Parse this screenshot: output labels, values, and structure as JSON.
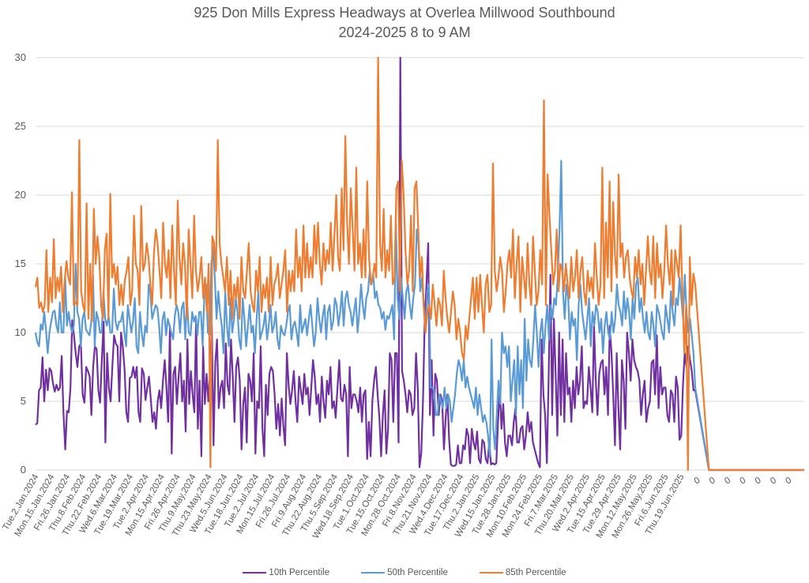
{
  "chart_data": {
    "type": "line",
    "title": "925 Don Mills Express Headways at Overlea Millwood Southbound",
    "subtitle": "2024-2025 8 to 9 AM",
    "xlabel": "",
    "ylabel": "",
    "ylim": [
      0,
      30
    ],
    "yticks": [
      0,
      5,
      10,
      15,
      20,
      25,
      30
    ],
    "grid": true,
    "legend_position": "bottom",
    "x_tick_labels": [
      "Tue.2.Jan.2024",
      "Mon.15.Jan.2024",
      "Fri.26.Jan.2024",
      "Thu.8.Feb.2024",
      "Thu.22.Feb.2024",
      "Wed.6.Mar.2024",
      "Tue.19.Mar.2024",
      "Tue.2.Apr.2024",
      "Mon.15.Apr.2024",
      "Fri.26.Apr.2024",
      "Thu.9.May.2024",
      "Thu.23.May.2024",
      "Wed.5.Jun.2024",
      "Tue.18.Jun.2024",
      "Tue.2.Jul.2024",
      "Mon.15.Jul.2024",
      "Fri.26.Jul.2024",
      "Fri.9.Aug.2024",
      "Thu.22.Aug.2024",
      "Thu.5.Sep.2024",
      "Wed.18.Sep.2024",
      "Tue.1.Oct.2024",
      "Tue.15.Oct.2024",
      "Mon.28.Oct.2024",
      "Fri.8.Nov.2024",
      "Thu.21.Nov.2024",
      "Wed.4.Dec.2024",
      "Tue.17.Dec.2024",
      "Thu.2.Jan.2025",
      "Wed.15.Jan.2025",
      "Tue.28.Jan.2025",
      "Mon.10.Feb.2025",
      "Mon.24.Feb.2025",
      "Fri.7.Mar.2025",
      "Thu.20.Mar.2025",
      "Wed.2.Apr.2025",
      "Tue.15.Apr.2025",
      "Tue.29.Apr.2025",
      "Mon.12.May.2025",
      "Mon.26.May.2025",
      "Fri.6.Jun.2025",
      "Thu.19.Jun.2025",
      "0",
      "0",
      "0",
      "0",
      "0",
      "0",
      "0"
    ],
    "series": [
      {
        "name": "10th Percentile",
        "color": "#7030A0",
        "values": [
          3.3,
          3.4,
          5.8,
          6.0,
          8.2,
          5.0,
          7.3,
          5.8,
          7.4,
          7.2,
          6.3,
          5.7,
          6.2,
          5.8,
          6.0,
          8.3,
          4.2,
          1.5,
          4.3,
          4.2,
          6.0,
          10.9,
          9.8,
          8.5,
          7.5,
          9.0,
          9.2,
          5.5,
          4.9,
          7.5,
          7.2,
          6.8,
          4.0,
          7.5,
          9.0,
          8.8,
          5.8,
          4.9,
          8.0,
          10.8,
          2.0,
          8.5,
          6.0,
          5.0,
          7.5,
          9.8,
          9.2,
          9.0,
          5.0,
          10.0,
          9.0,
          7.3,
          4.2,
          3.5,
          6.7,
          6.8,
          7.5,
          6.7,
          7.5,
          4.2,
          3.5,
          7.4,
          7.0,
          5.1,
          6.0,
          6.8,
          5.2,
          3.5,
          4.2,
          3.0,
          5.0,
          5.8,
          4.5,
          6.5,
          8.0,
          6.0,
          3.5,
          10.5,
          1.2,
          7.0,
          7.5,
          4.8,
          6.8,
          8.5,
          5.0,
          6.5,
          2.8,
          9.5,
          4.8,
          7.2,
          5.5,
          4.2,
          11.0,
          3.0,
          6.5,
          1.0,
          9.0,
          4.8,
          7.0,
          5.0,
          7.2,
          10.5,
          1.8,
          7.8,
          9.5,
          4.5,
          6.0,
          6.5,
          4.5,
          9.2,
          6.2,
          5.5,
          9.5,
          6.8,
          3.5,
          7.5,
          8.2,
          6.5,
          1.5,
          4.8,
          6.0,
          2.0,
          7.0,
          6.5,
          5.0,
          8.5,
          1.2,
          5.0,
          4.5,
          9.0,
          3.0,
          1.0,
          6.2,
          4.0,
          7.0,
          7.5,
          7.2,
          5.5,
          3.0,
          4.8,
          2.5,
          5.2,
          3.2,
          1.8,
          8.5,
          6.2,
          4.8,
          5.8,
          7.2,
          5.0,
          3.5,
          6.8,
          5.8,
          4.8,
          7.0,
          5.5,
          6.0,
          4.0,
          6.0,
          8.0,
          6.8,
          4.8,
          5.5,
          3.5,
          6.8,
          5.0,
          3.8,
          6.5,
          5.5,
          7.5,
          4.5,
          5.0,
          3.8,
          6.0,
          8.0,
          5.2,
          5.0,
          6.2,
          5.5,
          1.0,
          7.5,
          4.5,
          5.5,
          5.5,
          5.0,
          4.2,
          6.0,
          3.5,
          5.5,
          5.8,
          0.8,
          3.5,
          1.0,
          5.0,
          6.5,
          7.5,
          5.5,
          3.8,
          1.0,
          4.0,
          5.8,
          1.2,
          3.0,
          8.5,
          8.0,
          3.5,
          8.5,
          8.5,
          2.0,
          30.0,
          7.2,
          6.5,
          5.5,
          4.2,
          5.8,
          5.5,
          4.0,
          4.5,
          8.5,
          6.0,
          0.2,
          1.2,
          5.0,
          11.0,
          13.5,
          16.5,
          4.0,
          8.0,
          2.5,
          7.0,
          6.5,
          4.0,
          5.5,
          5.0,
          1.5,
          3.8,
          5.5,
          2.2,
          0.4,
          0.3,
          0.3,
          0.4,
          1.8,
          0.5,
          0.5,
          1.8,
          1.5,
          3.0,
          2.5,
          0.5,
          3.0,
          2.0,
          1.5,
          2.8,
          0.8,
          0.5,
          2.2,
          2.0,
          0.8,
          0.5,
          2.0,
          0.4,
          0.5,
          0.4,
          0.5,
          3.5,
          6.0,
          3.0,
          4.8,
          2.0,
          1.0,
          2.5,
          2.5,
          1.8,
          3.5,
          4.5,
          2.0,
          2.0,
          3.0,
          3.2,
          1.5,
          2.5,
          4.2,
          2.8,
          3.5,
          2.0,
          1.5,
          1.0,
          0.5,
          0.2,
          9.5,
          5.5,
          4.0,
          0.5,
          6.5,
          14.2,
          4.0,
          11.0,
          7.0,
          2.5,
          10.0,
          4.0,
          9.5,
          3.5,
          8.5,
          5.5,
          6.0,
          3.5,
          6.5,
          4.5,
          7.5,
          5.5,
          6.5,
          9.0,
          4.5,
          5.0,
          4.8,
          7.5,
          6.0,
          4.2,
          10.5,
          6.5,
          4.0,
          7.0,
          7.8,
          8.0,
          5.5,
          7.5,
          4.0,
          10.5,
          8.5,
          5.5,
          1.8,
          8.5,
          4.5,
          1.5,
          8.0,
          6.5,
          3.0,
          10.0,
          8.5,
          6.5,
          9.5,
          8.0,
          7.5,
          7.2,
          6.5,
          4.0,
          5.5,
          6.5,
          3.5,
          4.5,
          5.0,
          7.8,
          8.0,
          5.5,
          9.8,
          4.5,
          7.5,
          5.5,
          6.0,
          6.0,
          4.0,
          3.5,
          5.8,
          5.5,
          3.5,
          6.8,
          6.0,
          2.2,
          2.5,
          6.2,
          8.5,
          7.5,
          9.0,
          8.0,
          7.2,
          5.8,
          5.8,
          0,
          0,
          0,
          0,
          0,
          0,
          0,
          0
        ]
      },
      {
        "name": "50th Percentile",
        "color": "#5B9BD5",
        "values": [
          10.0,
          9.3,
          9.0,
          10.6,
          10.2,
          11.5,
          10.2,
          8.5,
          10.0,
          10.8,
          11.5,
          11.6,
          10.5,
          10.0,
          12.2,
          10.0,
          10.0,
          14.0,
          10.5,
          11.5,
          10.5,
          10.0,
          10.5,
          15.0,
          11.5,
          11.0,
          9.0,
          11.0,
          11.5,
          10.2,
          10.0,
          9.8,
          10.8,
          14.2,
          9.0,
          11.5,
          11.0,
          10.0,
          10.0,
          13.0,
          11.0,
          10.5,
          11.2,
          10.0,
          10.0,
          13.2,
          10.8,
          10.2,
          10.8,
          10.8,
          11.5,
          10.0,
          9.0,
          12.0,
          11.0,
          10.0,
          10.8,
          12.5,
          9.0,
          8.5,
          11.5,
          10.0,
          9.0,
          10.5,
          10.0,
          13.5,
          12.8,
          11.0,
          11.5,
          12.0,
          11.8,
          10.5,
          8.5,
          11.0,
          11.5,
          9.8,
          11.0,
          10.5,
          10.0,
          9.5,
          11.2,
          12.0,
          11.5,
          10.0,
          11.8,
          12.2,
          9.5,
          12.5,
          10.0,
          9.8,
          11.5,
          10.8,
          11.2,
          9.8,
          11.5,
          11.5,
          9.0,
          12.8,
          13.5,
          10.0,
          9.8,
          15.0,
          16.2,
          14.0,
          11.0,
          13.0,
          11.5,
          10.5,
          8.5,
          13.0,
          10.5,
          9.0,
          12.5,
          10.0,
          11.0,
          12.5,
          11.5,
          9.5,
          8.8,
          12.5,
          11.0,
          9.0,
          10.5,
          12.0,
          10.0,
          10.5,
          8.5,
          11.0,
          13.0,
          9.5,
          10.0,
          10.5,
          11.5,
          9.5,
          10.5,
          12.0,
          10.0,
          10.5,
          11.5,
          9.5,
          8.8,
          10.5,
          10.0,
          9.8,
          10.5,
          11.5,
          12.0,
          9.5,
          10.5,
          10.8,
          10.0,
          9.0,
          12.0,
          10.0,
          10.5,
          11.0,
          9.8,
          11.0,
          12.0,
          10.5,
          9.0,
          10.0,
          12.5,
          11.0,
          10.0,
          11.2,
          12.0,
          9.5,
          11.5,
          12.0,
          10.2,
          10.8,
          12.5,
          12.0,
          10.5,
          11.5,
          13.0,
          10.5,
          12.5,
          13.0,
          12.0,
          11.5,
          10.5,
          11.5,
          12.5,
          10.0,
          11.5,
          13.5,
          12.0,
          11.0,
          12.5,
          13.0,
          14.5,
          13.5,
          14.2,
          12.5,
          13.0,
          12.0,
          11.8,
          11.0,
          11.5,
          10.2,
          11.2,
          11.0,
          11.5,
          12.0,
          9.5,
          18.0,
          12.5,
          11.0,
          14.0,
          12.5,
          11.0,
          13.0,
          13.5,
          12.0,
          11.0,
          12.5,
          13.5,
          17.5,
          16.5,
          13.0,
          14.0,
          12.0,
          10.0,
          13.0,
          13.5,
          6.0,
          6.0,
          5.8,
          4.0,
          4.0,
          5.5,
          5.0,
          4.5,
          6.0,
          4.5,
          5.5,
          5.0,
          3.5,
          4.5,
          5.5,
          7.0,
          8.0,
          7.5,
          6.5,
          8.0,
          6.0,
          6.8,
          6.0,
          5.5,
          5.0,
          4.5,
          6.0,
          4.0,
          5.5,
          4.5,
          3.5,
          4.0,
          3.5,
          2.5,
          1.0,
          9.5,
          3.0,
          1.5,
          4.0,
          6.5,
          4.8,
          10.0,
          8.5,
          9.0,
          7.5,
          9.0,
          5.0,
          6.5,
          8.0,
          4.0,
          9.0,
          5.5,
          8.0,
          4.5,
          11.0,
          6.5,
          9.5,
          8.0,
          7.5,
          9.5,
          12.0,
          10.0,
          7.5,
          10.0,
          11.0,
          8.5,
          10.5,
          12.0,
          9.5,
          12.0,
          11.0,
          12.5,
          12.0,
          14.0,
          17.5,
          22.5,
          13.0,
          11.0,
          13.5,
          12.5,
          9.5,
          11.5,
          10.5,
          11.0,
          8.0,
          12.0,
          13.5,
          11.5,
          10.5,
          9.5,
          11.0,
          12.5,
          9.0,
          11.5,
          10.5,
          12.0,
          11.5,
          10.0,
          11.0,
          8.5,
          10.5,
          11.5,
          10.0,
          9.5,
          11.5,
          10.0,
          11.0,
          13.5,
          12.0,
          11.5,
          10.5,
          13.0,
          11.0,
          12.5,
          11.5,
          9.5,
          12.5,
          11.0,
          13.5,
          14.0,
          11.5,
          12.5,
          11.0,
          10.0,
          11.5,
          10.0,
          9.5,
          11.5,
          10.5,
          9.0,
          12.0,
          11.5,
          10.8,
          10.0,
          9.5,
          12.0,
          11.0,
          10.0,
          13.0,
          11.5,
          10.5,
          12.5,
          12.0,
          14.0,
          12.5,
          11.0,
          14.2,
          11.5,
          10.0,
          11.0,
          9.8,
          8.5,
          6.0,
          0,
          0,
          0,
          0,
          0,
          0,
          0,
          0
        ]
      },
      {
        "name": "85th Percentile",
        "color": "#ED7D31",
        "values": [
          13.3,
          14.0,
          11.8,
          12.2,
          11.5,
          12.0,
          16.0,
          11.5,
          14.0,
          12.2,
          16.8,
          12.5,
          14.0,
          13.0,
          14.8,
          11.5,
          13.8,
          15.2,
          14.0,
          13.5,
          20.2,
          12.0,
          12.2,
          12.0,
          24.0,
          13.0,
          12.0,
          11.5,
          19.4,
          11.0,
          15.0,
          10.8,
          19.0,
          15.0,
          17.0,
          15.5,
          12.0,
          11.0,
          16.0,
          17.2,
          11.0,
          20.1,
          14.0,
          15.0,
          13.5,
          14.8,
          12.0,
          13.5,
          12.0,
          13.8,
          14.5,
          15.5,
          12.0,
          13.0,
          18.5,
          15.0,
          14.5,
          12.0,
          19.2,
          14.5,
          15.0,
          16.5,
          15.5,
          13.5,
          12.0,
          15.8,
          17.5,
          16.5,
          14.5,
          12.5,
          18.0,
          15.0,
          14.0,
          16.0,
          12.5,
          17.8,
          14.5,
          12.0,
          19.6,
          15.5,
          13.5,
          16.5,
          15.0,
          11.0,
          17.5,
          15.0,
          12.5,
          18.5,
          14.5,
          13.0,
          14.0,
          15.5,
          12.5,
          14.0,
          11.5,
          15.0,
          0.2,
          17.0,
          16.5,
          14.5,
          24.0,
          16.5,
          15.0,
          14.0,
          13.0,
          15.5,
          12.0,
          14.5,
          11.0,
          13.5,
          12.5,
          14.0,
          11.0,
          15.5,
          13.0,
          12.5,
          14.5,
          16.5,
          13.0,
          12.0,
          11.5,
          14.5,
          13.0,
          15.5,
          11.5,
          13.5,
          12.5,
          14.0,
          11.5,
          15.5,
          12.0,
          13.5,
          14.0,
          15.0,
          12.5,
          13.5,
          14.5,
          16.0,
          11.5,
          14.5,
          13.0,
          14.5,
          13.0,
          17.5,
          14.0,
          15.5,
          13.0,
          17.8,
          14.0,
          16.5,
          14.0,
          15.5,
          14.0,
          17.8,
          15.0,
          18.0,
          15.0,
          13.5,
          16.5,
          14.5,
          16.0,
          15.0,
          18.0,
          14.5,
          17.0,
          20.0,
          15.5,
          14.5,
          20.5,
          16.0,
          24.3,
          18.0,
          15.0,
          20.5,
          17.5,
          14.5,
          22.0,
          15.0,
          16.5,
          14.0,
          17.5,
          14.0,
          21.0,
          15.5,
          13.5,
          14.0,
          15.0,
          14.0,
          30.0,
          16.5,
          14.5,
          19.0,
          14.0,
          16.0,
          14.5,
          18.5,
          13.5,
          14.0,
          20.5,
          21.0,
          13.0,
          22.5,
          20.0,
          16.0,
          13.5,
          14.5,
          18.5,
          13.0,
          20.5,
          21.0,
          17.5,
          14.0,
          15.5,
          12.0,
          10.0,
          11.5,
          12.0,
          11.0,
          13.5,
          12.0,
          10.5,
          12.5,
          12.0,
          10.5,
          14.5,
          12.5,
          11.0,
          10.0,
          11.5,
          13.0,
          12.0,
          9.5,
          11.0,
          10.0,
          8.5,
          8.0,
          10.5,
          9.5,
          11.0,
          12.5,
          14.0,
          11.0,
          14.0,
          11.5,
          14.2,
          12.0,
          10.0,
          13.5,
          14.2,
          11.5,
          12.0,
          22.3,
          14.5,
          13.0,
          14.0,
          15.5,
          14.5,
          11.5,
          13.0,
          15.0,
          16.0,
          14.0,
          17.5,
          12.5,
          15.0,
          17.0,
          11.5,
          15.5,
          14.0,
          12.5,
          16.5,
          13.5,
          12.0,
          17.0,
          14.5,
          12.0,
          13.0,
          16.0,
          13.5,
          26.9,
          12.0,
          21.5,
          18.5,
          16.0,
          13.5,
          14.5,
          17.5,
          13.0,
          15.0,
          14.5,
          13.0,
          15.0,
          13.5,
          12.5,
          15.5,
          13.0,
          14.0,
          16.0,
          12.5,
          14.5,
          15.5,
          13.0,
          12.0,
          14.5,
          13.0,
          14.0,
          12.5,
          16.5,
          14.0,
          12.0,
          13.5,
          22.0,
          12.5,
          18.0,
          14.0,
          21.0,
          13.0,
          19.5,
          15.5,
          14.0,
          21.5,
          15.5,
          16.5,
          14.0,
          15.5,
          16.0,
          14.0,
          13.0,
          12.5,
          15.5,
          14.0,
          16.0,
          13.5,
          15.0,
          12.0,
          14.5,
          17.0,
          14.5,
          13.5,
          17.0,
          12.5,
          16.5,
          14.0,
          15.0,
          12.5,
          14.5,
          17.8,
          15.0,
          13.5,
          16.0,
          12.0,
          16.0,
          15.0,
          14.0,
          17.8,
          12.5,
          8.5,
          12.0,
          0.0,
          15.5,
          12.0,
          14.3,
          13.5,
          0.0,
          0,
          0,
          0,
          0,
          0,
          0,
          0
        ]
      }
    ]
  }
}
